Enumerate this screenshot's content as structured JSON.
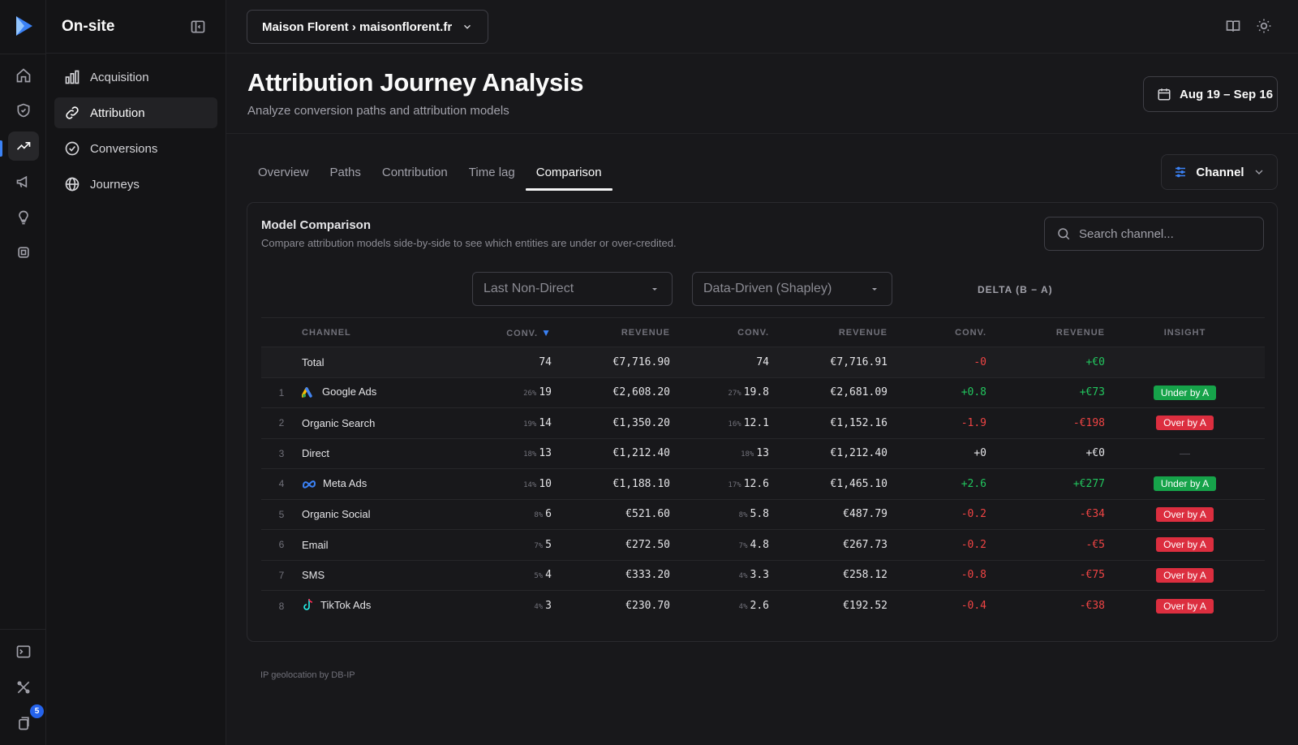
{
  "sidebar": {
    "title": "On-site",
    "items": [
      {
        "label": "Acquisition",
        "icon": "bar-chart-icon"
      },
      {
        "label": "Attribution",
        "icon": "link-icon"
      },
      {
        "label": "Conversions",
        "icon": "check-circle-icon"
      },
      {
        "label": "Journeys",
        "icon": "globe-icon"
      }
    ],
    "notification_count": "5"
  },
  "topbar": {
    "site_selector": "Maison Florent › maisonflorent.fr"
  },
  "header": {
    "title": "Attribution Journey Analysis",
    "subtitle": "Analyze conversion paths and attribution models",
    "date_range": "Aug 19 – Sep 16"
  },
  "tabs": [
    "Overview",
    "Paths",
    "Contribution",
    "Time lag",
    "Comparison"
  ],
  "active_tab": "Comparison",
  "channel_filter": "Channel",
  "comparison": {
    "title": "Model Comparison",
    "subtitle": "Compare attribution models side-by-side to see which entities are under or over-credited.",
    "search_placeholder": "Search channel...",
    "model_a": "Last Non-Direct",
    "model_b": "Data-Driven (Shapley)",
    "delta_label": "DELTA (B − A)",
    "columns": [
      "CHANNEL",
      "CONV.",
      "REVENUE",
      "CONV.",
      "REVENUE",
      "CONV.",
      "REVENUE",
      "INSIGHT"
    ],
    "sort_indicator": "▼",
    "total": {
      "label": "Total",
      "a_conv": "74",
      "a_rev": "€7,716.90",
      "b_conv": "74",
      "b_rev": "€7,716.91",
      "d_conv": "-0",
      "d_rev": "+€0"
    },
    "rows": [
      {
        "idx": "1",
        "name": "Google Ads",
        "a_pct": "26%",
        "a_conv": "19",
        "a_rev": "€2,608.20",
        "b_pct": "27%",
        "b_conv": "19.8",
        "b_rev": "€2,681.09",
        "d_conv": "+0.8",
        "d_rev": "+€73",
        "insight": "Under by A"
      },
      {
        "idx": "2",
        "name": "Organic Search",
        "a_pct": "19%",
        "a_conv": "14",
        "a_rev": "€1,350.20",
        "b_pct": "16%",
        "b_conv": "12.1",
        "b_rev": "€1,152.16",
        "d_conv": "-1.9",
        "d_rev": "-€198",
        "insight": "Over by A"
      },
      {
        "idx": "3",
        "name": "Direct",
        "a_pct": "18%",
        "a_conv": "13",
        "a_rev": "€1,212.40",
        "b_pct": "18%",
        "b_conv": "13",
        "b_rev": "€1,212.40",
        "d_conv": "+0",
        "d_rev": "+€0",
        "insight": "—"
      },
      {
        "idx": "4",
        "name": "Meta Ads",
        "a_pct": "14%",
        "a_conv": "10",
        "a_rev": "€1,188.10",
        "b_pct": "17%",
        "b_conv": "12.6",
        "b_rev": "€1,465.10",
        "d_conv": "+2.6",
        "d_rev": "+€277",
        "insight": "Under by A"
      },
      {
        "idx": "5",
        "name": "Organic Social",
        "a_pct": "8%",
        "a_conv": "6",
        "a_rev": "€521.60",
        "b_pct": "8%",
        "b_conv": "5.8",
        "b_rev": "€487.79",
        "d_conv": "-0.2",
        "d_rev": "-€34",
        "insight": "Over by A"
      },
      {
        "idx": "6",
        "name": "Email",
        "a_pct": "7%",
        "a_conv": "5",
        "a_rev": "€272.50",
        "b_pct": "7%",
        "b_conv": "4.8",
        "b_rev": "€267.73",
        "d_conv": "-0.2",
        "d_rev": "-€5",
        "insight": "Over by A"
      },
      {
        "idx": "7",
        "name": "SMS",
        "a_pct": "5%",
        "a_conv": "4",
        "a_rev": "€333.20",
        "b_pct": "4%",
        "b_conv": "3.3",
        "b_rev": "€258.12",
        "d_conv": "-0.8",
        "d_rev": "-€75",
        "insight": "Over by A"
      },
      {
        "idx": "8",
        "name": "TikTok Ads",
        "a_pct": "4%",
        "a_conv": "3",
        "a_rev": "€230.70",
        "b_pct": "4%",
        "b_conv": "2.6",
        "b_rev": "€192.52",
        "d_conv": "-0.4",
        "d_rev": "-€38",
        "insight": "Over by A"
      }
    ]
  },
  "footer": "IP geolocation by DB-IP",
  "colors": {
    "accent": "#3b82f6",
    "positive": "#22c55e",
    "negative": "#ef4444",
    "under_pill": "#16a34a",
    "over_pill": "#dc2e3f"
  }
}
